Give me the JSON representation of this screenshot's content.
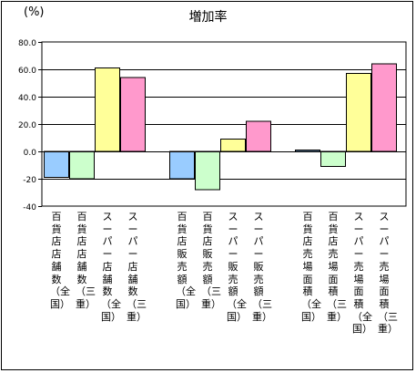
{
  "chart_data": {
    "type": "bar",
    "title": "増加率",
    "unit_label": "(%)",
    "ylim": [
      -40,
      80
    ],
    "yticks": [
      -40,
      -20,
      0,
      20,
      40,
      60,
      80
    ],
    "ytick_labels": [
      "-40",
      "-20",
      "0.0",
      "20.0",
      "40.0",
      "60.0",
      "80.0"
    ],
    "grid": "horizontal",
    "categories": [
      "百貨店店舗数（全国）",
      "百貨店店舗数（三重）",
      "スーパー店舗数（全国）",
      "スーパー店舗数（三重）",
      "百貨店販売額（全国）",
      "百貨店販売額（三重）",
      "スーパー販売額（全国）",
      "スーパー販売額（三重）",
      "百貨店売場面積（全国）",
      "百貨店売場面積（三重）",
      "スーパー売場面積（全国）",
      "スーパー売場面積（三重）"
    ],
    "values": [
      -19,
      -20,
      61,
      54,
      -20,
      -28,
      9,
      22,
      1,
      -11,
      57,
      64
    ],
    "colors": [
      "#99ccff",
      "#ccffcc",
      "#ffff99",
      "#ff99cc"
    ]
  }
}
